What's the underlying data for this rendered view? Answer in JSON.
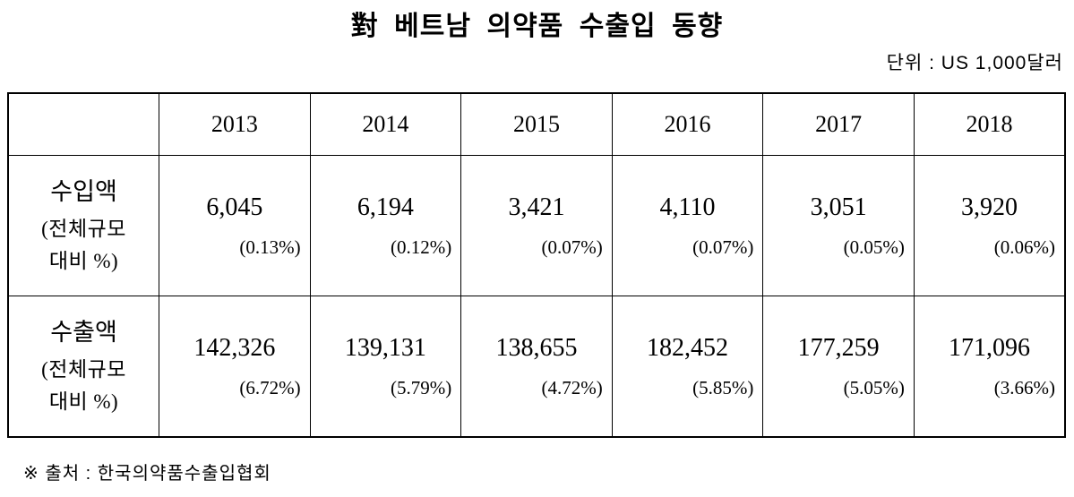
{
  "title": "對 베트남 의약품 수출입 동향",
  "unit_label": "단위 : US 1,000달러",
  "source_note": "※ 출처 : 한국의약품수출입협회",
  "table": {
    "years": [
      "2013",
      "2014",
      "2015",
      "2016",
      "2017",
      "2018"
    ],
    "rows": [
      {
        "label_main": "수입액",
        "label_sub1": "(전체규모",
        "label_sub2": "대비 %)",
        "values": [
          "6,045",
          "6,194",
          "3,421",
          "4,110",
          "3,051",
          "3,920"
        ],
        "percents": [
          "(0.13%)",
          "(0.12%)",
          "(0.07%)",
          "(0.07%)",
          "(0.05%)",
          "(0.06%)"
        ]
      },
      {
        "label_main": "수출액",
        "label_sub1": "(전체규모",
        "label_sub2": "대비 %)",
        "values": [
          "142,326",
          "139,131",
          "138,655",
          "182,452",
          "177,259",
          "171,096"
        ],
        "percents": [
          "(6.72%)",
          "(5.79%)",
          "(4.72%)",
          "(5.85%)",
          "(5.05%)",
          "(3.66%)"
        ]
      }
    ]
  },
  "chart_data": {
    "type": "table",
    "title": "對 베트남 의약품 수출입 동향",
    "unit": "US 1,000달러",
    "categories": [
      "2013",
      "2014",
      "2015",
      "2016",
      "2017",
      "2018"
    ],
    "series": [
      {
        "name": "수입액",
        "values": [
          6045,
          6194,
          3421,
          4110,
          3051,
          3920
        ],
        "share_pct": [
          0.13,
          0.12,
          0.07,
          0.07,
          0.05,
          0.06
        ]
      },
      {
        "name": "수출액",
        "values": [
          142326,
          139131,
          138655,
          182452,
          177259,
          171096
        ],
        "share_pct": [
          6.72,
          5.79,
          4.72,
          5.85,
          5.05,
          3.66
        ]
      }
    ],
    "source": "한국의약품수출입협회"
  }
}
